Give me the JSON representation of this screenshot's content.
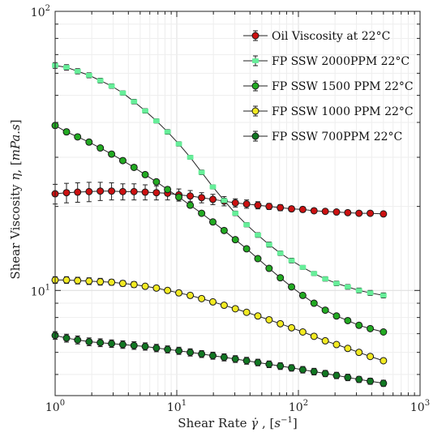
{
  "chart_data": {
    "type": "line",
    "xscale": "log",
    "yscale": "log",
    "xlim": [
      1,
      1000
    ],
    "ylim": [
      4.2,
      100
    ],
    "grid": true,
    "legend_position": "top-right",
    "xlabel": {
      "main": "Shear Rate ",
      "sym": "γ̇",
      "tail": " , [",
      "unit": "s",
      "exp": "−1",
      "close": "]"
    },
    "ylabel": {
      "main": "Shear Viscosity ",
      "sym": "η",
      "tail": ", [",
      "unit": "mPa.s",
      "close": "]"
    },
    "x_ticks": [
      {
        "value": 1,
        "base": "10",
        "exp": "0"
      },
      {
        "value": 10,
        "base": "10",
        "exp": "1"
      },
      {
        "value": 100,
        "base": "10",
        "exp": "2"
      },
      {
        "value": 1000,
        "base": "10",
        "exp": "3"
      }
    ],
    "y_ticks": [
      {
        "value": 10,
        "base": "10",
        "exp": "1"
      },
      {
        "value": 100,
        "base": "10",
        "exp": "2"
      }
    ],
    "x": [
      1,
      1.24,
      1.53,
      1.9,
      2.35,
      2.91,
      3.6,
      4.45,
      5.5,
      6.8,
      8.4,
      10.4,
      12.9,
      16,
      19.8,
      24.5,
      30.3,
      37.5,
      46.4,
      57.4,
      71,
      87.8,
      108.6,
      134.4,
      166.3,
      205.7,
      254.5,
      314.9,
      389.5,
      500
    ],
    "series": [
      {
        "name": "Oil Viscosity at 22°C",
        "color": "#cc1111",
        "marker": "circle",
        "values": [
          22.2,
          22.4,
          22.5,
          22.6,
          22.7,
          22.7,
          22.6,
          22.6,
          22.5,
          22.4,
          22.3,
          22.0,
          21.8,
          21.5,
          21.2,
          20.9,
          20.6,
          20.4,
          20.2,
          20.0,
          19.8,
          19.6,
          19.5,
          19.3,
          19.2,
          19.1,
          19.0,
          18.9,
          18.9,
          18.8
        ],
        "error": [
          1.8,
          1.8,
          1.8,
          1.8,
          1.7,
          1.6,
          1.5,
          1.5,
          1.4,
          1.3,
          1.2,
          1.1,
          1.0,
          0.9,
          0.9,
          0.8,
          0.7,
          0.7,
          0.6,
          0.5,
          0.5,
          0.4,
          0.4,
          0.35,
          0.3,
          0.3,
          0.25,
          0.25,
          0.2,
          0.2
        ]
      },
      {
        "name": "FP SSW 2000PPM 22°C",
        "color": "#66ee99",
        "marker": "square",
        "values": [
          64,
          63,
          61,
          59,
          56.5,
          54,
          51,
          47.5,
          44,
          40.5,
          37,
          33.5,
          30,
          26.5,
          23.5,
          21,
          18.9,
          17.2,
          15.8,
          14.6,
          13.6,
          12.8,
          12.1,
          11.5,
          11.0,
          10.6,
          10.3,
          10.0,
          9.8,
          9.6
        ],
        "error": [
          1.5,
          1.4,
          1.3,
          1.2,
          1.1,
          1.0,
          0.9,
          0.9,
          0.8,
          0.7,
          0.7,
          0.6,
          0.5,
          0.5,
          0.4,
          0.4,
          0.35,
          0.3,
          0.3,
          0.3,
          0.25,
          0.25,
          0.2,
          0.2,
          0.2,
          0.2,
          0.2,
          0.2,
          0.2,
          0.2
        ]
      },
      {
        "name": "FP SSW 1500 PPM 22°C",
        "color": "#22aa22",
        "marker": "circle",
        "values": [
          39,
          37,
          35.5,
          34,
          32.4,
          30.8,
          29.2,
          27.6,
          26,
          24.5,
          23,
          21.6,
          20.2,
          18.9,
          17.6,
          16.4,
          15.2,
          14.1,
          13.0,
          12.0,
          11.1,
          10.3,
          9.6,
          9.0,
          8.5,
          8.1,
          7.8,
          7.5,
          7.3,
          7.1
        ],
        "error": [
          0.8,
          0.8,
          0.7,
          0.7,
          0.6,
          0.6,
          0.5,
          0.5,
          0.5,
          0.4,
          0.4,
          0.4,
          0.35,
          0.3,
          0.3,
          0.3,
          0.25,
          0.25,
          0.2,
          0.2,
          0.2,
          0.2,
          0.15,
          0.15,
          0.15,
          0.15,
          0.15,
          0.15,
          0.1,
          0.1
        ]
      },
      {
        "name": "FP SSW 1000 PPM 22°C",
        "color": "#f2ea22",
        "marker": "circle",
        "values": [
          10.9,
          10.9,
          10.85,
          10.8,
          10.75,
          10.7,
          10.6,
          10.5,
          10.35,
          10.2,
          10.0,
          9.8,
          9.6,
          9.35,
          9.1,
          8.85,
          8.6,
          8.35,
          8.1,
          7.85,
          7.6,
          7.35,
          7.1,
          6.85,
          6.6,
          6.4,
          6.2,
          6.0,
          5.8,
          5.6
        ],
        "error": [
          0.3,
          0.3,
          0.3,
          0.3,
          0.3,
          0.25,
          0.25,
          0.25,
          0.2,
          0.2,
          0.2,
          0.2,
          0.2,
          0.15,
          0.15,
          0.15,
          0.15,
          0.15,
          0.15,
          0.15,
          0.1,
          0.1,
          0.1,
          0.1,
          0.1,
          0.1,
          0.1,
          0.1,
          0.1,
          0.1
        ]
      },
      {
        "name": "FP SSW 700PPM 22°C",
        "color": "#117722",
        "marker": "circle",
        "values": [
          6.9,
          6.75,
          6.65,
          6.55,
          6.5,
          6.45,
          6.4,
          6.35,
          6.3,
          6.22,
          6.15,
          6.08,
          6.0,
          5.92,
          5.84,
          5.76,
          5.68,
          5.6,
          5.52,
          5.44,
          5.36,
          5.28,
          5.2,
          5.12,
          5.04,
          4.96,
          4.88,
          4.8,
          4.73,
          4.65
        ],
        "error": [
          0.22,
          0.22,
          0.22,
          0.21,
          0.21,
          0.2,
          0.2,
          0.2,
          0.19,
          0.19,
          0.18,
          0.18,
          0.18,
          0.17,
          0.17,
          0.17,
          0.16,
          0.16,
          0.15,
          0.15,
          0.15,
          0.14,
          0.14,
          0.14,
          0.13,
          0.13,
          0.13,
          0.12,
          0.12,
          0.12
        ]
      }
    ]
  }
}
